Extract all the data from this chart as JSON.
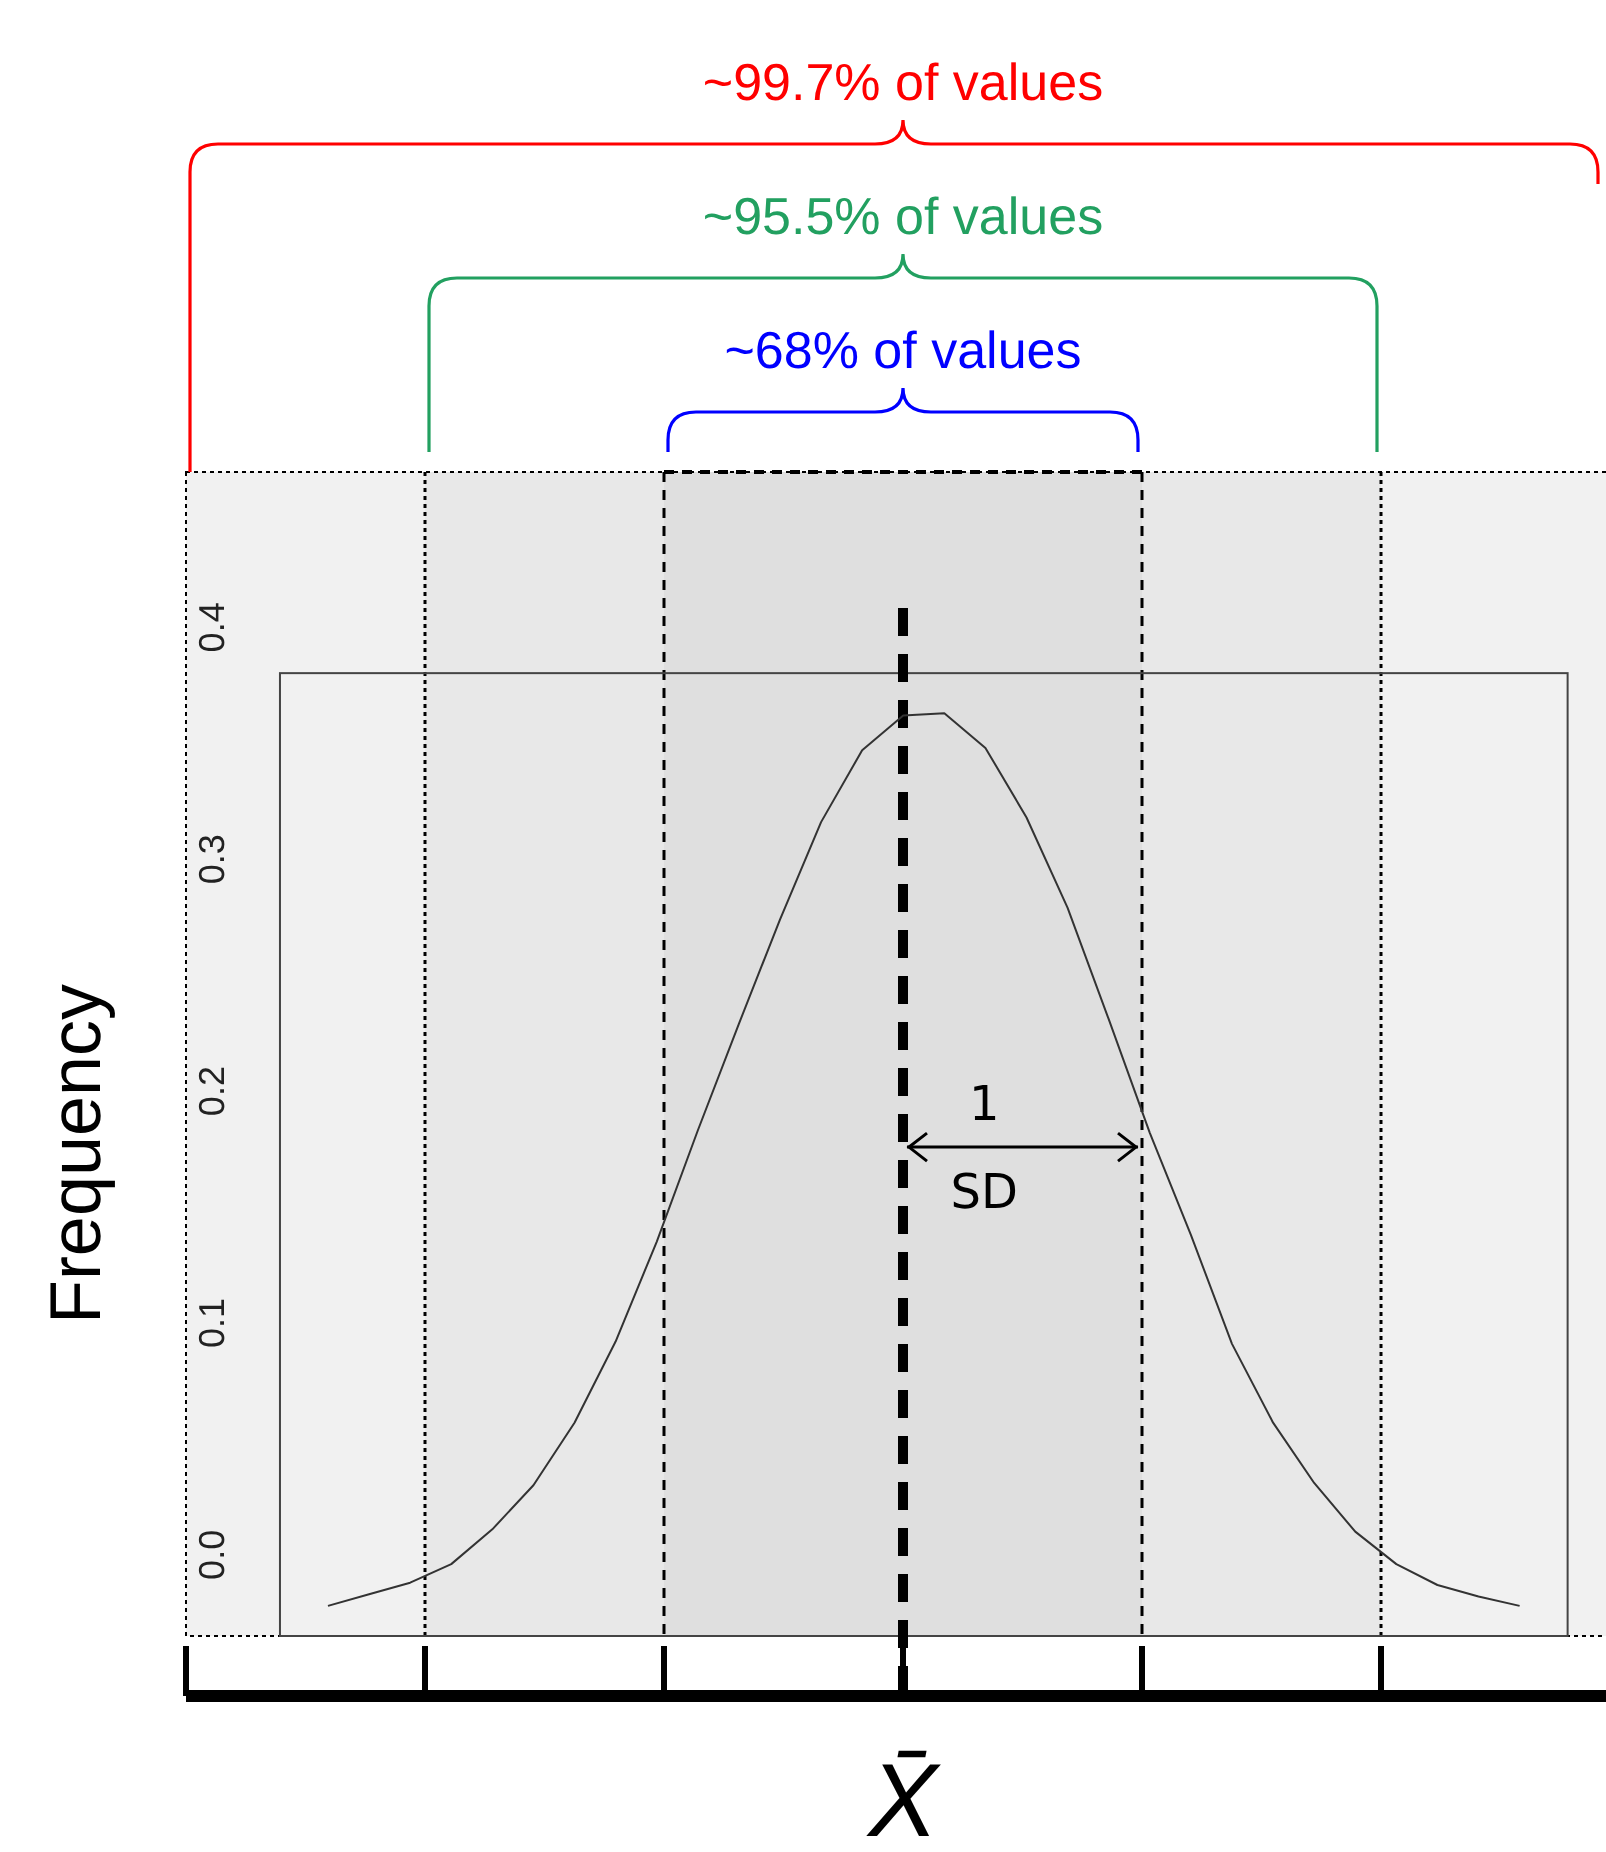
{
  "chart_data": {
    "type": "line",
    "xlabel": "X̄",
    "ylabel": "Frequency",
    "categories": [
      null,
      null,
      null,
      null,
      null,
      null,
      null,
      null,
      null,
      null,
      null,
      null,
      null,
      null,
      null,
      null,
      null,
      null,
      null,
      null,
      null,
      null,
      null,
      null,
      null,
      null,
      null,
      null,
      null,
      null
    ],
    "series": [
      {
        "color": "#333333",
        "values": [
          -0.022,
          -0.017,
          -0.012,
          -0.004,
          0.011,
          0.03,
          0.057,
          0.092,
          0.135,
          0.183,
          0.229,
          0.274,
          0.316,
          0.347,
          0.362,
          0.363,
          0.348,
          0.318,
          0.279,
          0.231,
          0.182,
          0.138,
          0.091,
          0.057,
          0.031,
          0.01,
          -0.004,
          -0.013,
          -0.018,
          -0.022
        ]
      }
    ],
    "ylim": [
      -0.035,
      0.467
    ],
    "yticks": [
      {
        "value": 0,
        "label": "0.0"
      },
      0.1,
      0.2,
      0.3,
      0.4
    ],
    "grid": false,
    "marker": "none",
    "line_style": "solid",
    "annotations": [
      "~99.7% of values",
      "~95.5% of values",
      "~68% of values",
      "1",
      "SD"
    ]
  }
}
